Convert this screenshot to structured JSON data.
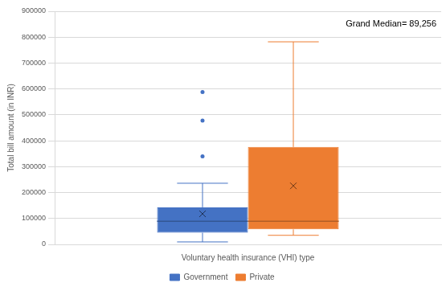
{
  "chart_data": {
    "type": "box",
    "y_label": "Total bill amount (in INR)",
    "annotation": "Grand Median= 89,256",
    "categories": [
      "Voluntary health insurance (VHI) type"
    ],
    "series": [
      {
        "name": "Government",
        "color": "#4472c4",
        "min": 9500,
        "q1": 45000,
        "median": 89000,
        "q3": 143000,
        "max": 236000,
        "mean": 118000,
        "outliers": [
          340000,
          478000,
          588000
        ]
      },
      {
        "name": "Private",
        "color": "#ed7d31",
        "min": 35000,
        "q1": 58000,
        "median": 89256,
        "q3": 376000,
        "max": 782000,
        "mean": 226000,
        "outliers": []
      }
    ],
    "ylim": [
      0,
      900000
    ],
    "yticks": [
      0,
      100000,
      200000,
      300000,
      400000,
      500000,
      600000,
      700000,
      800000,
      900000
    ],
    "grid": true,
    "legend": "bottom"
  }
}
